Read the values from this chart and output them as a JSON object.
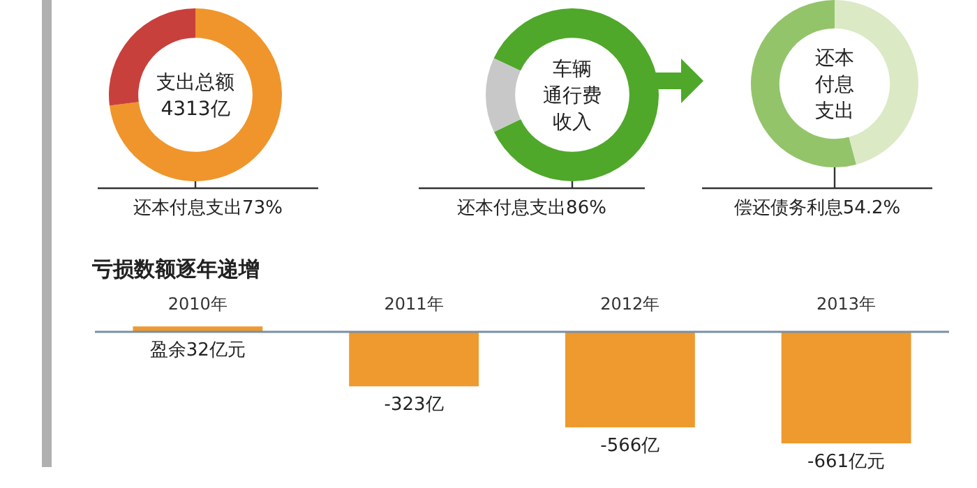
{
  "chart_data": [
    {
      "type": "donut",
      "title": "支出总额4313亿",
      "categories": [
        null,
        null
      ],
      "values": [
        73,
        27
      ],
      "colors": [
        "#f0952b",
        "#c8403c"
      ],
      "annotations": [
        "还本付息支出73%"
      ]
    },
    {
      "type": "donut",
      "title": "车辆通行费收入",
      "categories": [
        null,
        null
      ],
      "values": [
        86,
        14
      ],
      "colors": [
        "#4fa82a",
        "#c8c8c8"
      ],
      "annotations": [
        "还本付息支出86%"
      ]
    },
    {
      "type": "donut",
      "title": "还本付息支出",
      "categories": [
        null,
        null
      ],
      "values": [
        54.2,
        45.8
      ],
      "colors": [
        "#93c46a",
        "#dbe9c4"
      ],
      "annotations": [
        "偿还债务利息54.2%"
      ]
    },
    {
      "type": "bar",
      "title": "亏损数额逐年递增",
      "categories": [
        "2010年",
        "2011年",
        "2012年",
        "2013年"
      ],
      "values": [
        32,
        -323,
        -566,
        -661
      ],
      "color": "#ef9a2e",
      "value_labels": [
        "盈余32亿元",
        "-323亿",
        "-566亿",
        "-661亿元"
      ]
    }
  ]
}
